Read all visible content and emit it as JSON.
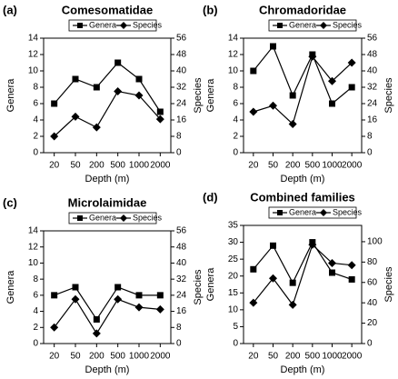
{
  "chart_data": [
    {
      "type": "line",
      "label": "(a)",
      "title": "Comesomatidae",
      "xlabel": "Depth (m)",
      "ylabel": "Genera",
      "y2label": "Species",
      "categories": [
        "20",
        "50",
        "200",
        "500",
        "1000",
        "2000"
      ],
      "series": [
        {
          "name": "Genera",
          "marker": "square",
          "color": "#000000",
          "values": [
            6,
            9,
            8,
            11,
            9,
            5
          ]
        },
        {
          "name": "Species",
          "marker": "diamond",
          "color": "#000000",
          "axis": "y2",
          "values": [
            8,
            17.6,
            12.4,
            30,
            28,
            16.4
          ]
        }
      ],
      "ylim": [
        0,
        14
      ],
      "yticks": [
        0,
        2,
        4,
        6,
        8,
        10,
        12,
        14
      ],
      "y2lim": [
        0,
        56
      ],
      "y2ticks": [
        0,
        8,
        16,
        24,
        32,
        40,
        48,
        56
      ]
    },
    {
      "type": "line",
      "label": "(b)",
      "title": "Chromadoridae",
      "xlabel": "Depth (m)",
      "ylabel": "Genera",
      "y2label": "Species",
      "categories": [
        "20",
        "50",
        "200",
        "500",
        "1000",
        "2000"
      ],
      "series": [
        {
          "name": "Genera",
          "marker": "square",
          "color": "#000000",
          "values": [
            10,
            13,
            7,
            12,
            6,
            8
          ]
        },
        {
          "name": "Species",
          "marker": "diamond",
          "color": "#000000",
          "axis": "y2",
          "values": [
            20,
            23,
            14,
            47,
            35,
            44
          ]
        }
      ],
      "ylim": [
        0,
        14
      ],
      "yticks": [
        0,
        2,
        4,
        6,
        8,
        10,
        12,
        14
      ],
      "y2lim": [
        0,
        56
      ],
      "y2ticks": [
        0,
        8,
        16,
        24,
        32,
        40,
        48,
        56
      ]
    },
    {
      "type": "line",
      "label": "(c)",
      "title": "Microlaimidae",
      "xlabel": "Depth (m)",
      "ylabel": "Genera",
      "y2label": "Species",
      "categories": [
        "20",
        "50",
        "200",
        "500",
        "1000",
        "2000"
      ],
      "series": [
        {
          "name": "Genera",
          "marker": "square",
          "color": "#000000",
          "values": [
            6,
            7,
            3,
            7,
            6,
            6
          ]
        },
        {
          "name": "Species",
          "marker": "diamond",
          "color": "#000000",
          "axis": "y2",
          "values": [
            8,
            22,
            5,
            22,
            18,
            17
          ]
        }
      ],
      "ylim": [
        0,
        14
      ],
      "yticks": [
        0,
        2,
        4,
        6,
        8,
        10,
        12,
        14
      ],
      "y2lim": [
        0,
        56
      ],
      "y2ticks": [
        0,
        8,
        16,
        24,
        32,
        40,
        48,
        56
      ]
    },
    {
      "type": "line",
      "label": "(d)",
      "title": "Combined families",
      "xlabel": "Depth (m)",
      "ylabel": "Genera",
      "y2label": "Species",
      "categories": [
        "20",
        "50",
        "200",
        "500",
        "1000",
        "2000"
      ],
      "series": [
        {
          "name": "Genera",
          "marker": "square",
          "color": "#000000",
          "values": [
            22,
            29,
            18,
            30,
            21,
            19
          ]
        },
        {
          "name": "Species",
          "marker": "diamond",
          "color": "#000000",
          "axis": "y2",
          "values": [
            40,
            64,
            38,
            97,
            79,
            77
          ]
        }
      ],
      "ylim": [
        0,
        35
      ],
      "yticks": [
        0,
        5,
        10,
        15,
        20,
        25,
        30,
        35
      ],
      "y2lim": [
        0,
        116
      ],
      "y2ticks": [
        0,
        20,
        40,
        60,
        80,
        100
      ]
    }
  ]
}
